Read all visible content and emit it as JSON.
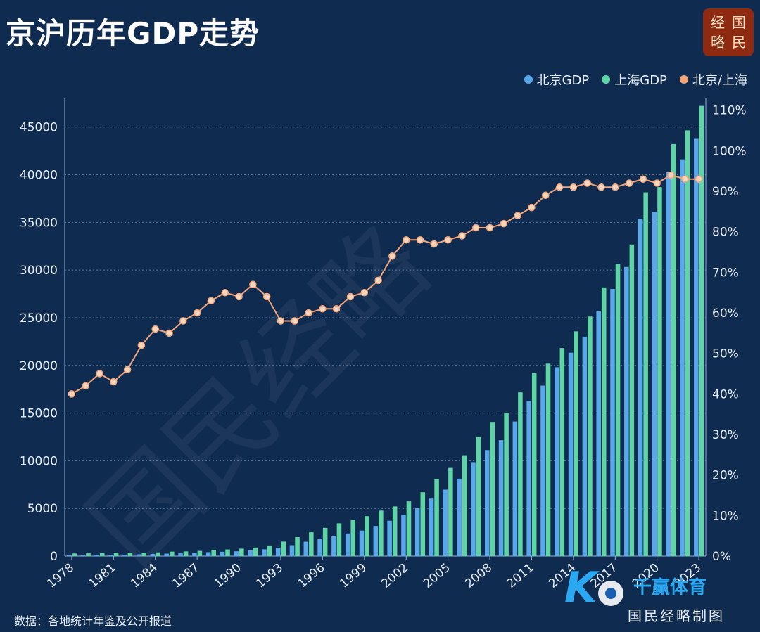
{
  "title": "京沪历年GDP走势",
  "seal": [
    "经",
    "国",
    "略",
    "民"
  ],
  "watermark_text": "国民经略",
  "source": "数据：各地统计年鉴及公开报道",
  "credit": "国民经略制图",
  "badge_text": "千赢体育",
  "colors": {
    "beijing": "#5aa8ec",
    "shanghai": "#5fd5a6",
    "ratio": "#f4a57a",
    "background": "#0f2c50"
  },
  "chart_data": {
    "type": "bar",
    "title": "京沪历年GDP走势",
    "x": [
      1978,
      1979,
      1980,
      1981,
      1982,
      1983,
      1984,
      1985,
      1986,
      1987,
      1988,
      1989,
      1990,
      1991,
      1992,
      1993,
      1994,
      1995,
      1996,
      1997,
      1998,
      1999,
      2000,
      2001,
      2002,
      2003,
      2004,
      2005,
      2006,
      2007,
      2008,
      2009,
      2010,
      2011,
      2012,
      2013,
      2014,
      2015,
      2016,
      2017,
      2018,
      2019,
      2020,
      2021,
      2022,
      2023
    ],
    "series": [
      {
        "name": "北京GDP",
        "type": "bar",
        "axis": "left",
        "values": [
          109,
          120,
          139,
          139,
          155,
          183,
          217,
          257,
          285,
          327,
          410,
          456,
          501,
          598,
          709,
          886,
          1145,
          1508,
          1789,
          2076,
          2377,
          2678,
          3162,
          3708,
          4315,
          5007,
          6033,
          6969,
          8118,
          9847,
          11115,
          12153,
          14114,
          16252,
          17879,
          19801,
          21331,
          23015,
          25669,
          28015,
          30320,
          35371,
          36103,
          40270,
          41611,
          43761
        ]
      },
      {
        "name": "上海GDP",
        "type": "bar",
        "axis": "left",
        "values": [
          273,
          287,
          312,
          325,
          337,
          352,
          390,
          467,
          491,
          546,
          649,
          697,
          782,
          894,
          1114,
          1519,
          1990,
          2499,
          2958,
          3438,
          3801,
          4189,
          4771,
          5210,
          5741,
          6694,
          8073,
          9248,
          10572,
          12494,
          14070,
          15046,
          17166,
          19196,
          20182,
          21818,
          23568,
          25123,
          28179,
          30633,
          32680,
          38155,
          38701,
          43215,
          44653,
          47219
        ]
      },
      {
        "name": "北京/上海",
        "type": "line",
        "axis": "right",
        "values": [
          40,
          42,
          45,
          43,
          46,
          52,
          56,
          55,
          58,
          60,
          63,
          65,
          64,
          67,
          64,
          58,
          58,
          60,
          61,
          61,
          64,
          65,
          68,
          74,
          78,
          78,
          77,
          78,
          79,
          81,
          81,
          82,
          84,
          86,
          89,
          91,
          91,
          92,
          91,
          91,
          92,
          93,
          92,
          94,
          93,
          93
        ]
      }
    ],
    "xticks": [
      "1978",
      "1981",
      "1984",
      "1987",
      "1990",
      "1993",
      "1996",
      "1999",
      "2002",
      "2005",
      "2008",
      "2011",
      "2014",
      "2017",
      "2020",
      "2023"
    ],
    "yticks_left": [
      "0",
      "5000",
      "10000",
      "15000",
      "20000",
      "25000",
      "30000",
      "35000",
      "40000",
      "45000"
    ],
    "yticks_right": [
      "0%",
      "10%",
      "20%",
      "30%",
      "40%",
      "50%",
      "60%",
      "70%",
      "80%",
      "90%",
      "100%",
      "110%"
    ],
    "ylim_left": [
      0,
      48000
    ],
    "ylim_right": [
      0,
      112.9
    ],
    "grid": true,
    "legend_position": "top-right"
  }
}
